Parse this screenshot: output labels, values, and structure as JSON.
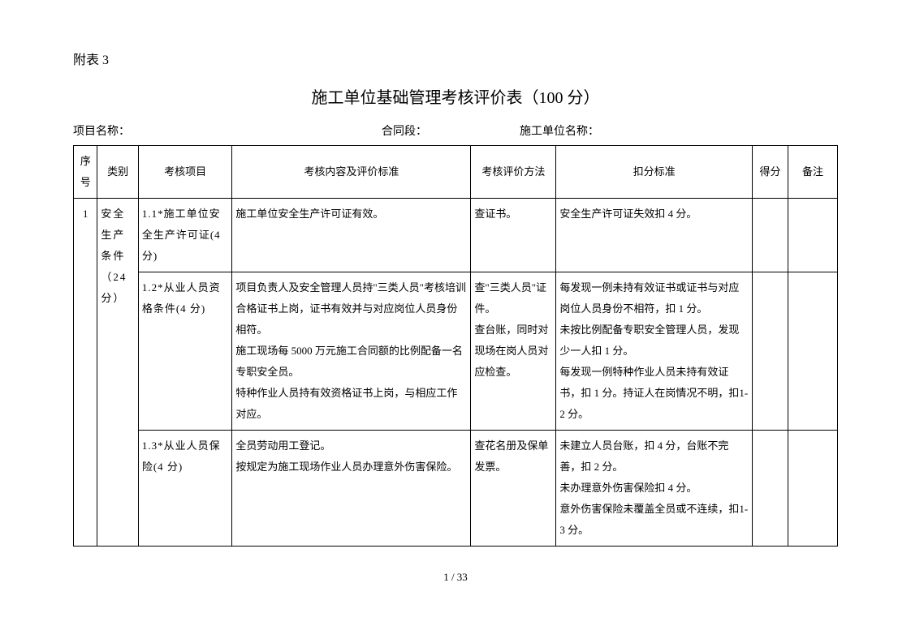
{
  "header_label": "附表 3",
  "title": "施工单位基础管理考核评价表（100 分）",
  "info": {
    "project_name_label": "项目名称：",
    "contract_section_label": "合同段：",
    "unit_name_label": "施工单位名称："
  },
  "columns": {
    "seq": "序号",
    "category": "类别",
    "item": "考核项目",
    "content": "考核内容及评价标准",
    "method": "考核评价方法",
    "deduction": "扣分标准",
    "score": "得分",
    "remark": "备注"
  },
  "rows": [
    {
      "seq": "1",
      "category": "安全生产条件（24分）",
      "item": "1.1*施工单位安全生产许可证(4 分)",
      "content": "施工单位安全生产许可证有效。",
      "method": "查证书。",
      "deduction": "安全生产许可证失效扣 4 分。"
    },
    {
      "item": "1.2*从业人员资格条件(4 分)",
      "content": "项目负责人及安全管理人员持\"三类人员\"考核培训合格证书上岗，证书有效并与对应岗位人员身份相符。\n施工现场每 5000 万元施工合同额的比例配备一名专职安全员。\n特种作业人员持有效资格证书上岗，与相应工作对应。",
      "method": "查\"三类人员\"证件。\n查台账，同时对现场在岗人员对应检查。",
      "deduction": "每发现一例未持有效证书或证书与对应岗位人员身份不相符，扣 1 分。\n未按比例配备专职安全管理人员，发现少一人扣 1 分。\n每发现一例特种作业人员未持有效证书，扣 1 分。持证人在岗情况不明，扣1-2 分。"
    },
    {
      "item": "1.3*从业人员保险(4 分)",
      "content": "全员劳动用工登记。\n按规定为施工现场作业人员办理意外伤害保险。",
      "method": "查花名册及保单发票。",
      "deduction": "未建立人员台账，扣 4 分，台账不完善，扣 2 分。\n未办理意外伤害保险扣 4 分。\n意外伤害保险未覆盖全员或不连续，扣1-3 分。"
    }
  ],
  "page_footer": "1 / 33"
}
